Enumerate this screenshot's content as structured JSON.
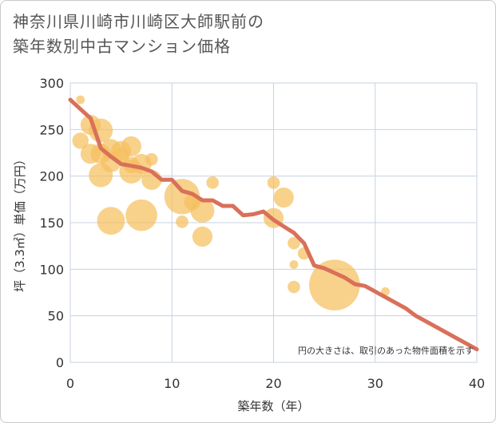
{
  "chart_data": {
    "type": "scatter",
    "title_lines": [
      "神奈川県川崎市川崎区大師駅前の",
      "築年数別中古マンション価格"
    ],
    "xlabel": "築年数（年）",
    "ylabel": "坪（3.3㎡）単価（万円）",
    "xlim": [
      0,
      40
    ],
    "ylim": [
      0,
      300
    ],
    "x_ticks": [
      "0",
      "10",
      "20",
      "30",
      "40"
    ],
    "y_ticks": [
      "0",
      "50",
      "100",
      "150",
      "200",
      "250",
      "300"
    ],
    "grid": true,
    "note": "円の大きさは、取引のあった物件面積を示す",
    "colors": {
      "bubble": "#f5bf5e",
      "line": "#d9705a",
      "grid": "#c8d3df"
    },
    "series": [
      {
        "type": "scatter",
        "points": [
          {
            "x": 1,
            "y": 282,
            "s": 1
          },
          {
            "x": 1,
            "y": 238,
            "s": 3
          },
          {
            "x": 2,
            "y": 255,
            "s": 4
          },
          {
            "x": 2,
            "y": 224,
            "s": 4
          },
          {
            "x": 3,
            "y": 249,
            "s": 5
          },
          {
            "x": 3,
            "y": 224,
            "s": 4
          },
          {
            "x": 3,
            "y": 201,
            "s": 5
          },
          {
            "x": 4,
            "y": 229,
            "s": 4
          },
          {
            "x": 4,
            "y": 215,
            "s": 4
          },
          {
            "x": 4,
            "y": 152,
            "s": 6
          },
          {
            "x": 5,
            "y": 227,
            "s": 4
          },
          {
            "x": 5,
            "y": 222,
            "s": 3
          },
          {
            "x": 6,
            "y": 232,
            "s": 4
          },
          {
            "x": 6,
            "y": 205,
            "s": 5
          },
          {
            "x": 6,
            "y": 212,
            "s": 3
          },
          {
            "x": 7,
            "y": 213,
            "s": 4
          },
          {
            "x": 7,
            "y": 158,
            "s": 7
          },
          {
            "x": 8,
            "y": 218,
            "s": 2
          },
          {
            "x": 8,
            "y": 196,
            "s": 4
          },
          {
            "x": 11,
            "y": 178,
            "s": 8
          },
          {
            "x": 11,
            "y": 151,
            "s": 2
          },
          {
            "x": 12,
            "y": 172,
            "s": 3
          },
          {
            "x": 13,
            "y": 163,
            "s": 5
          },
          {
            "x": 13,
            "y": 135,
            "s": 4
          },
          {
            "x": 14,
            "y": 193,
            "s": 2
          },
          {
            "x": 20,
            "y": 193,
            "s": 2
          },
          {
            "x": 20,
            "y": 155,
            "s": 4
          },
          {
            "x": 21,
            "y": 177,
            "s": 4
          },
          {
            "x": 22,
            "y": 128,
            "s": 2
          },
          {
            "x": 22,
            "y": 105,
            "s": 1
          },
          {
            "x": 22,
            "y": 81,
            "s": 2
          },
          {
            "x": 23,
            "y": 117,
            "s": 2
          },
          {
            "x": 26,
            "y": 83,
            "s": 12
          },
          {
            "x": 31,
            "y": 76,
            "s": 1
          }
        ]
      },
      {
        "type": "line",
        "x": [
          0,
          1,
          2,
          3,
          4,
          5,
          6,
          7,
          8,
          9,
          10,
          11,
          12,
          13,
          14,
          15,
          16,
          17,
          18,
          19,
          20,
          21,
          22,
          23,
          24,
          25,
          26,
          27,
          28,
          29,
          30,
          31,
          32,
          33,
          34,
          35,
          36,
          37,
          38,
          39,
          40
        ],
        "y": [
          282,
          272,
          262,
          230,
          221,
          213,
          211,
          209,
          205,
          196,
          196,
          184,
          181,
          174,
          174,
          168,
          168,
          158,
          159,
          162,
          153,
          146,
          139,
          128,
          104,
          101,
          96,
          91,
          84,
          82,
          76,
          70,
          64,
          58,
          50,
          44,
          38,
          32,
          26,
          20,
          14
        ]
      }
    ]
  }
}
